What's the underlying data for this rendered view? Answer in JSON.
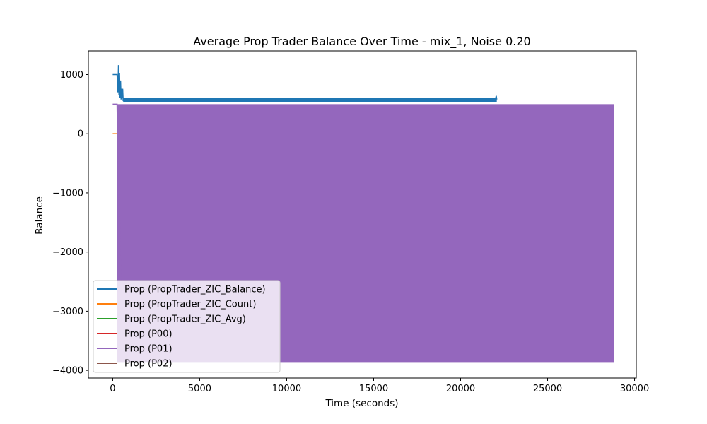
{
  "chart_data": {
    "type": "line",
    "title": "Average Prop Trader Balance Over Time - mix_1, Noise 0.20",
    "xlabel": "Time (seconds)",
    "ylabel": "Balance",
    "xlim": [
      -1400,
      30100
    ],
    "ylim": [
      -4130,
      1400
    ],
    "xticks": [
      0,
      5000,
      10000,
      15000,
      20000,
      25000,
      30000
    ],
    "xtick_labels": [
      "0",
      "5000",
      "10000",
      "15000",
      "20000",
      "25000",
      "30000"
    ],
    "yticks": [
      -4000,
      -3000,
      -2000,
      -1000,
      0,
      1000
    ],
    "ytick_labels": [
      "−4000",
      "−3000",
      "−2000",
      "−1000",
      "0",
      "1000"
    ],
    "grid": false,
    "legend_position": "lower-left",
    "series": [
      {
        "name": "Prop (PropTrader_ZIC_Balance)",
        "color": "#1f77b4",
        "style": "line",
        "x": [
          0,
          250,
          300,
          330,
          360,
          390,
          420,
          450,
          480,
          510,
          540,
          570,
          600,
          650,
          700,
          22000,
          22050,
          22080
        ],
        "y": [
          1000,
          1000,
          700,
          1160,
          650,
          1030,
          600,
          900,
          580,
          760,
          600,
          760,
          560,
          560,
          580,
          580,
          640,
          580
        ],
        "band": {
          "x_start": 600,
          "x_end": 22080,
          "y_low": 530,
          "y_high": 600
        }
      },
      {
        "name": "Prop (PropTrader_ZIC_Count)",
        "color": "#ff7f0e",
        "style": "line",
        "x": [
          0,
          250
        ],
        "y": [
          0,
          0
        ]
      },
      {
        "name": "Prop (PropTrader_ZIC_Avg)",
        "color": "#2ca02c",
        "style": "line",
        "x": [],
        "y": []
      },
      {
        "name": "Prop (P00)",
        "color": "#d62728",
        "style": "line",
        "x": [],
        "y": []
      },
      {
        "name": "Prop (P01)",
        "color": "#9467bd",
        "style": "line",
        "x": [
          0,
          250,
          300,
          400,
          550
        ],
        "y": [
          500,
          500,
          -400,
          -1500,
          -3860
        ],
        "band": {
          "x_start": 250,
          "x_end": 28800,
          "y_low": -3860,
          "y_high": 500
        }
      },
      {
        "name": "Prop (P02)",
        "color": "#8c564b",
        "style": "line",
        "x": [],
        "y": []
      }
    ]
  }
}
